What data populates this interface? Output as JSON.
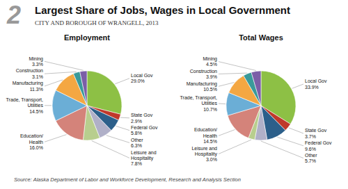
{
  "title": "Largest Share of Jobs, Wages in Local Government",
  "subtitle": "CITY AND BOROUGH OF WRANGELL, 2013",
  "annotations": [
    "2",
    "Source: Alaska Department of Labor and Workforce Development, Research and Analysis Section"
  ],
  "chart_data": [
    {
      "type": "pie",
      "title": "Employment",
      "categories": [
        "Local Gov",
        "State Gov",
        "Federal Gov",
        "Other",
        "Leisure and\nHospitality",
        "Education/\nHealth",
        "Trade, Transport,\nUtilities",
        "Manufacturing",
        "Construction",
        "Mining"
      ],
      "values": [
        29.0,
        2.9,
        5.8,
        6.3,
        7.8,
        16.0,
        14.5,
        11.3,
        3.1,
        3.3
      ],
      "value_labels": [
        "29.0%",
        "2.9%",
        "5.8%",
        "6.3%",
        "7.8%",
        "16.0%",
        "14.5%",
        "11.3%",
        "3.1%",
        "3.3%"
      ],
      "colors": [
        "#8dc045",
        "#c0392b",
        "#2c5f8a",
        "#b0b0c8",
        "#b8ce8e",
        "#d4837a",
        "#6baed6",
        "#f4a742",
        "#3a9a9a",
        "#7b5ea7"
      ],
      "data_labels": true
    },
    {
      "type": "pie",
      "title": "Total Wages",
      "categories": [
        "Local Gov",
        "State Gov",
        "Federal Gov",
        "Other",
        "Leisure and\nHospitality",
        "Education/\nHealth",
        "Trade, Transport,\nUtilities",
        "Manufacturing",
        "Construction",
        "Mining"
      ],
      "values": [
        33.9,
        3.7,
        9.6,
        5.7,
        3.0,
        14.5,
        10.7,
        10.5,
        3.9,
        4.5
      ],
      "value_labels": [
        "33.9%",
        "3.7%",
        "9.6%",
        "5.7%",
        "3.0%",
        "14.5%",
        "10.7%",
        "10.5%",
        "3.9%",
        "4.5%"
      ],
      "colors": [
        "#8dc045",
        "#c0392b",
        "#2c5f8a",
        "#b0b0c8",
        "#b8ce8e",
        "#d4837a",
        "#6baed6",
        "#f4a742",
        "#3a9a9a",
        "#7b5ea7"
      ],
      "data_labels": true
    }
  ]
}
